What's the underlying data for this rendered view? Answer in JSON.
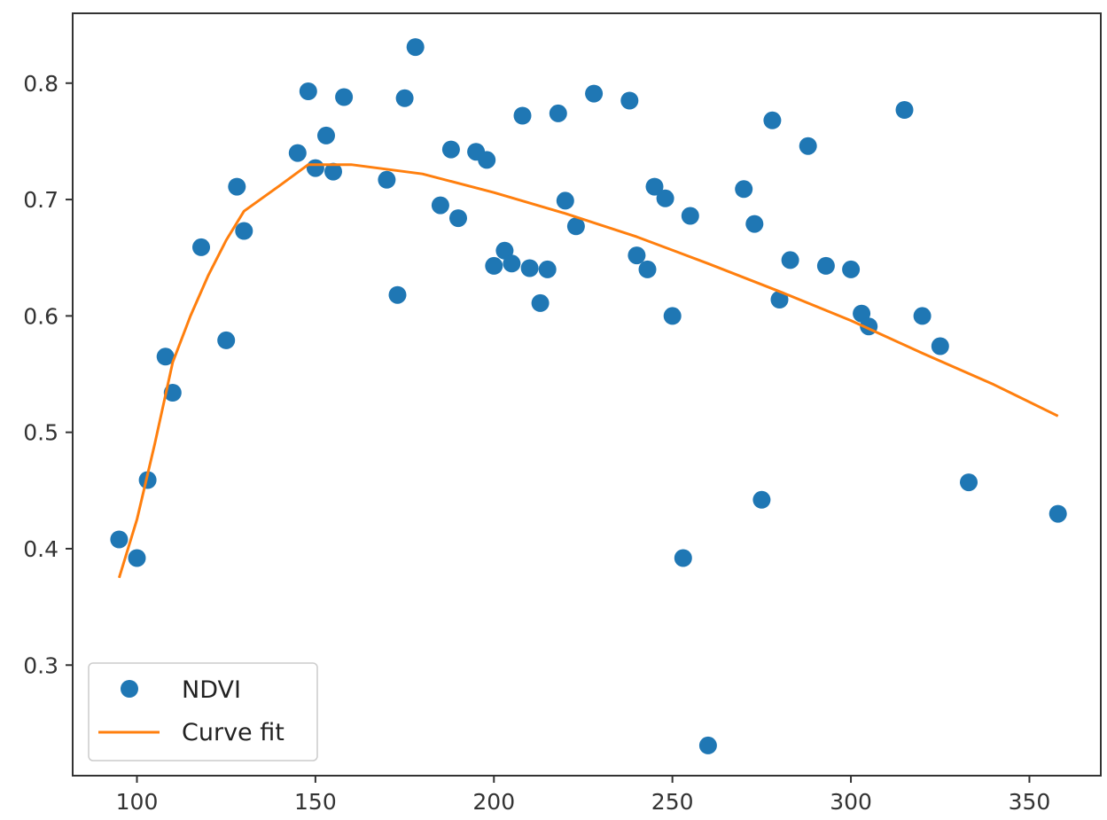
{
  "chart_data": {
    "type": "scatter",
    "title": "",
    "xlabel": "",
    "ylabel": "",
    "xlim": [
      82,
      370
    ],
    "ylim": [
      0.205,
      0.86
    ],
    "xticks": [
      100,
      150,
      200,
      250,
      300,
      350
    ],
    "yticks": [
      0.3,
      0.4,
      0.5,
      0.6,
      0.7,
      0.8
    ],
    "grid": false,
    "legend_position": "lower-left",
    "series": [
      {
        "name": "NDVI",
        "kind": "scatter",
        "color": "#1f77b4",
        "points": [
          [
            95,
            0.408
          ],
          [
            100,
            0.392
          ],
          [
            103,
            0.459
          ],
          [
            108,
            0.565
          ],
          [
            110,
            0.534
          ],
          [
            118,
            0.659
          ],
          [
            125,
            0.579
          ],
          [
            128,
            0.711
          ],
          [
            130,
            0.673
          ],
          [
            145,
            0.74
          ],
          [
            148,
            0.793
          ],
          [
            150,
            0.727
          ],
          [
            153,
            0.755
          ],
          [
            155,
            0.724
          ],
          [
            158,
            0.788
          ],
          [
            170,
            0.717
          ],
          [
            173,
            0.618
          ],
          [
            175,
            0.787
          ],
          [
            178,
            0.831
          ],
          [
            185,
            0.695
          ],
          [
            188,
            0.743
          ],
          [
            190,
            0.684
          ],
          [
            195,
            0.741
          ],
          [
            198,
            0.734
          ],
          [
            200,
            0.643
          ],
          [
            203,
            0.656
          ],
          [
            205,
            0.645
          ],
          [
            208,
            0.772
          ],
          [
            210,
            0.641
          ],
          [
            213,
            0.611
          ],
          [
            215,
            0.64
          ],
          [
            218,
            0.774
          ],
          [
            220,
            0.699
          ],
          [
            223,
            0.677
          ],
          [
            228,
            0.791
          ],
          [
            238,
            0.785
          ],
          [
            240,
            0.652
          ],
          [
            243,
            0.64
          ],
          [
            245,
            0.711
          ],
          [
            248,
            0.701
          ],
          [
            250,
            0.6
          ],
          [
            253,
            0.392
          ],
          [
            255,
            0.686
          ],
          [
            260,
            0.231
          ],
          [
            270,
            0.709
          ],
          [
            273,
            0.679
          ],
          [
            275,
            0.442
          ],
          [
            278,
            0.768
          ],
          [
            280,
            0.614
          ],
          [
            283,
            0.648
          ],
          [
            288,
            0.746
          ],
          [
            293,
            0.643
          ],
          [
            300,
            0.64
          ],
          [
            303,
            0.602
          ],
          [
            305,
            0.591
          ],
          [
            315,
            0.777
          ],
          [
            320,
            0.6
          ],
          [
            325,
            0.574
          ],
          [
            333,
            0.457
          ],
          [
            358,
            0.43
          ]
        ]
      },
      {
        "name": "Curve fit",
        "kind": "line",
        "color": "#ff7f0e",
        "points": [
          [
            95,
            0.375
          ],
          [
            100,
            0.425
          ],
          [
            105,
            0.49
          ],
          [
            110,
            0.56
          ],
          [
            115,
            0.6
          ],
          [
            120,
            0.635
          ],
          [
            125,
            0.665
          ],
          [
            130,
            0.69
          ],
          [
            140,
            0.712
          ],
          [
            148,
            0.73
          ],
          [
            160,
            0.73
          ],
          [
            180,
            0.722
          ],
          [
            200,
            0.706
          ],
          [
            220,
            0.688
          ],
          [
            240,
            0.668
          ],
          [
            260,
            0.645
          ],
          [
            280,
            0.621
          ],
          [
            300,
            0.596
          ],
          [
            320,
            0.568
          ],
          [
            340,
            0.541
          ],
          [
            358,
            0.514
          ]
        ]
      }
    ]
  }
}
